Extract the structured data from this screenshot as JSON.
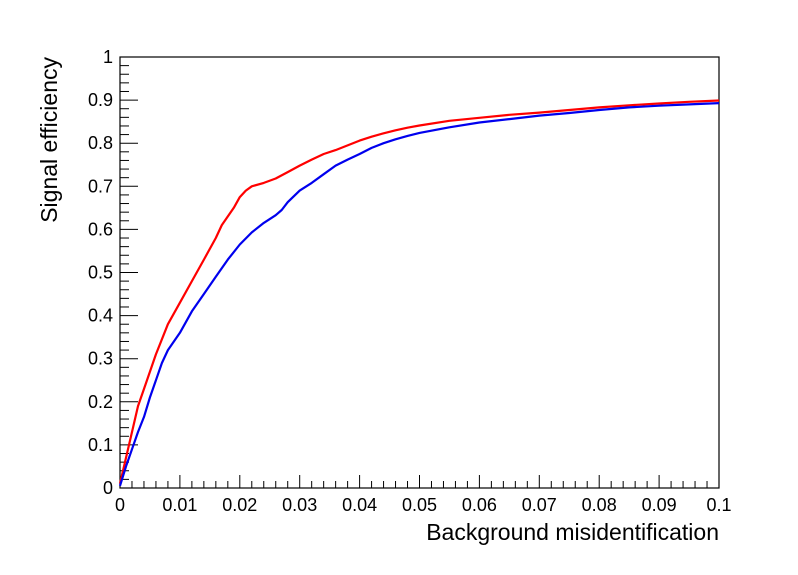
{
  "chart_data": {
    "type": "line",
    "title": "",
    "xlabel": "Background misidentification",
    "ylabel": "Signal efficiency",
    "xlim": [
      0,
      0.1
    ],
    "ylim": [
      0,
      1
    ],
    "grid": false,
    "x_ticks": [
      "0",
      "0.01",
      "0.02",
      "0.03",
      "0.04",
      "0.05",
      "0.06",
      "0.07",
      "0.08",
      "0.09",
      "0.1"
    ],
    "y_ticks": [
      "0",
      "0.1",
      "0.2",
      "0.3",
      "0.4",
      "0.5",
      "0.6",
      "0.7",
      "0.8",
      "0.9",
      "1"
    ],
    "series": [
      {
        "color": "#ff0000",
        "points": [
          [
            0,
            0.01
          ],
          [
            0.001,
            0.07
          ],
          [
            0.002,
            0.13
          ],
          [
            0.003,
            0.19
          ],
          [
            0.004,
            0.23
          ],
          [
            0.006,
            0.31
          ],
          [
            0.008,
            0.38
          ],
          [
            0.01,
            0.43
          ],
          [
            0.012,
            0.48
          ],
          [
            0.014,
            0.53
          ],
          [
            0.016,
            0.58
          ],
          [
            0.017,
            0.61
          ],
          [
            0.019,
            0.65
          ],
          [
            0.02,
            0.675
          ],
          [
            0.021,
            0.69
          ],
          [
            0.022,
            0.7
          ],
          [
            0.024,
            0.708
          ],
          [
            0.026,
            0.718
          ],
          [
            0.028,
            0.733
          ],
          [
            0.03,
            0.748
          ],
          [
            0.032,
            0.762
          ],
          [
            0.034,
            0.775
          ],
          [
            0.036,
            0.784
          ],
          [
            0.038,
            0.795
          ],
          [
            0.04,
            0.806
          ],
          [
            0.042,
            0.815
          ],
          [
            0.044,
            0.823
          ],
          [
            0.046,
            0.83
          ],
          [
            0.048,
            0.836
          ],
          [
            0.05,
            0.841
          ],
          [
            0.055,
            0.852
          ],
          [
            0.06,
            0.859
          ],
          [
            0.065,
            0.866
          ],
          [
            0.07,
            0.871
          ],
          [
            0.075,
            0.877
          ],
          [
            0.08,
            0.883
          ],
          [
            0.085,
            0.888
          ],
          [
            0.09,
            0.892
          ],
          [
            0.095,
            0.896
          ],
          [
            0.1,
            0.899
          ]
        ]
      },
      {
        "color": "#0000ee",
        "points": [
          [
            0,
            0.005
          ],
          [
            0.001,
            0.05
          ],
          [
            0.002,
            0.09
          ],
          [
            0.003,
            0.13
          ],
          [
            0.004,
            0.165
          ],
          [
            0.005,
            0.21
          ],
          [
            0.006,
            0.25
          ],
          [
            0.007,
            0.29
          ],
          [
            0.008,
            0.32
          ],
          [
            0.01,
            0.36
          ],
          [
            0.012,
            0.41
          ],
          [
            0.014,
            0.45
          ],
          [
            0.016,
            0.49
          ],
          [
            0.018,
            0.53
          ],
          [
            0.02,
            0.565
          ],
          [
            0.022,
            0.593
          ],
          [
            0.024,
            0.615
          ],
          [
            0.026,
            0.633
          ],
          [
            0.027,
            0.645
          ],
          [
            0.028,
            0.663
          ],
          [
            0.03,
            0.69
          ],
          [
            0.032,
            0.708
          ],
          [
            0.034,
            0.728
          ],
          [
            0.036,
            0.748
          ],
          [
            0.038,
            0.762
          ],
          [
            0.04,
            0.775
          ],
          [
            0.042,
            0.789
          ],
          [
            0.044,
            0.8
          ],
          [
            0.046,
            0.809
          ],
          [
            0.048,
            0.817
          ],
          [
            0.05,
            0.824
          ],
          [
            0.055,
            0.837
          ],
          [
            0.06,
            0.848
          ],
          [
            0.065,
            0.856
          ],
          [
            0.07,
            0.864
          ],
          [
            0.075,
            0.87
          ],
          [
            0.08,
            0.877
          ],
          [
            0.085,
            0.883
          ],
          [
            0.09,
            0.887
          ],
          [
            0.095,
            0.89
          ],
          [
            0.1,
            0.893
          ]
        ]
      }
    ]
  }
}
